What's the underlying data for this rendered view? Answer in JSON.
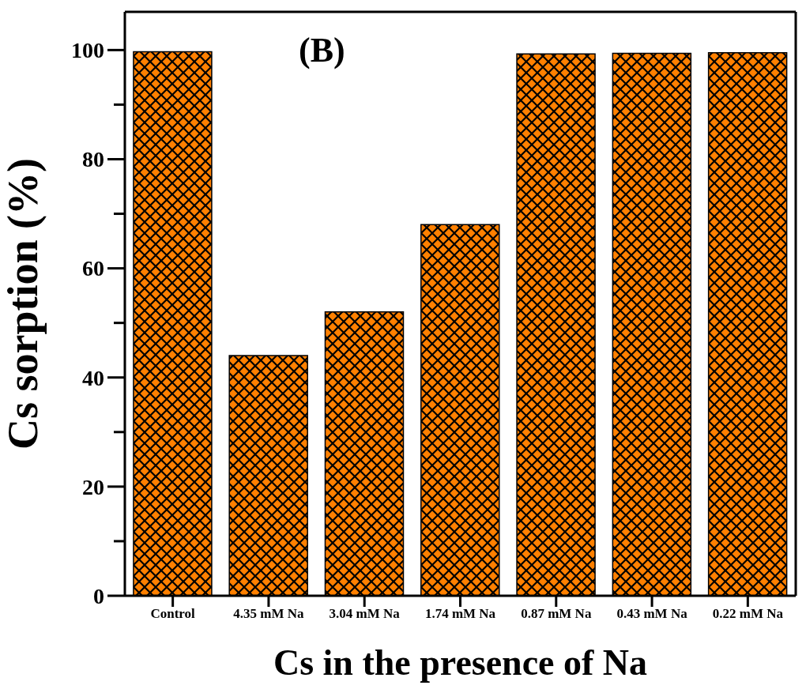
{
  "chart_data": {
    "type": "bar",
    "xlabel": "Cs in the presence of Na",
    "ylabel": "Cs sorption (%)",
    "annotations": [
      "(B)"
    ],
    "categories": [
      "Control",
      "4.35 mM Na",
      "3.04 mM Na",
      "1.74 mM Na",
      "0.87 mM Na",
      "0.43 mM Na",
      "0.22 mM Na"
    ],
    "values": [
      99.7,
      44,
      52,
      68,
      99.3,
      99.4,
      99.5
    ],
    "color": "#ff8000",
    "ylim": [
      0,
      107
    ],
    "yticks": [
      0,
      {
        "value": 10,
        "label": null
      },
      20,
      {
        "value": 30,
        "label": null
      },
      40,
      {
        "value": 50,
        "label": null
      },
      60,
      {
        "value": 70,
        "label": null
      },
      80,
      {
        "value": 90,
        "label": null
      },
      100
    ],
    "grid": false,
    "legend": false
  }
}
